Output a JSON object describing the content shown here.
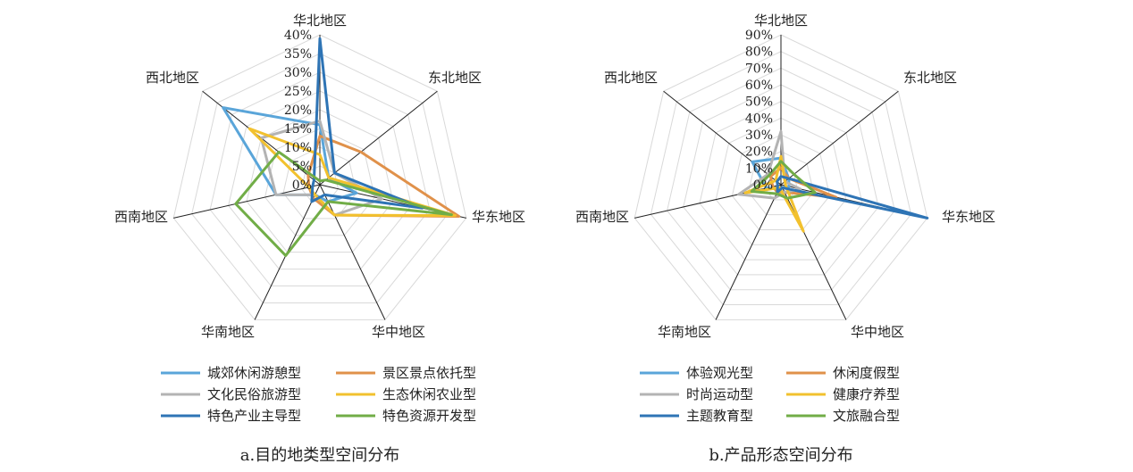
{
  "chart_data": [
    {
      "type": "radar",
      "title": "a.目的地类型空间分布",
      "axes": [
        "华北地区",
        "东北地区",
        "华东地区",
        "华中地区",
        "华南地区",
        "西南地区",
        "西北地区"
      ],
      "tick_labels": [
        "0%",
        "5%",
        "10%",
        "15%",
        "20%",
        "25%",
        "30%",
        "35%",
        "40%"
      ],
      "range": [
        0,
        40
      ],
      "unit": "%",
      "grid": true,
      "legend_position": "bottom",
      "series": [
        {
          "name": "城郊休闲游憩型",
          "color": "#5AA5D9",
          "values": [
            16,
            3,
            10,
            5,
            3,
            12,
            33
          ]
        },
        {
          "name": "景区景点依托型",
          "color": "#E0914A",
          "values": [
            13,
            14,
            38,
            9,
            4,
            3,
            4
          ]
        },
        {
          "name": "文化民俗旅游型",
          "color": "#B3B3B3",
          "values": [
            17,
            5,
            17,
            9,
            3,
            12,
            20
          ]
        },
        {
          "name": "生态休闲农业型",
          "color": "#F2C12E",
          "values": [
            8,
            3,
            37,
            9,
            3,
            3,
            24
          ]
        },
        {
          "name": "特色产业主导型",
          "color": "#2E74B5",
          "values": [
            39,
            5,
            28,
            3,
            5,
            2,
            2
          ]
        },
        {
          "name": "特色资源开发型",
          "color": "#71AD47",
          "values": [
            1,
            2,
            36,
            5,
            21,
            23,
            14
          ]
        }
      ]
    },
    {
      "type": "radar",
      "title": "b.产品形态空间分布",
      "axes": [
        "华北地区",
        "东北地区",
        "华东地区",
        "华中地区",
        "华南地区",
        "西南地区",
        "西北地区"
      ],
      "tick_labels": [
        "0%",
        "10%",
        "20%",
        "30%",
        "40%",
        "50%",
        "60%",
        "70%",
        "80%",
        "90%"
      ],
      "range": [
        0,
        90
      ],
      "unit": "%",
      "grid": true,
      "legend_position": "bottom",
      "series": [
        {
          "name": "体验观光型",
          "color": "#5AA5D9",
          "values": [
            16,
            6,
            5,
            2,
            2,
            9,
            22
          ]
        },
        {
          "name": "休闲度假型",
          "color": "#E0914A",
          "values": [
            10,
            6,
            34,
            5,
            5,
            5,
            8
          ]
        },
        {
          "name": "时尚运动型",
          "color": "#B3B3B3",
          "values": [
            32,
            3,
            12,
            5,
            9,
            26,
            10
          ]
        },
        {
          "name": "健康疗养型",
          "color": "#F2C12E",
          "values": [
            17,
            3,
            3,
            31,
            2,
            22,
            4
          ]
        },
        {
          "name": "主题教育型",
          "color": "#2E74B5",
          "values": [
            5,
            6,
            90,
            2,
            5,
            2,
            3
          ]
        },
        {
          "name": "文旅融合型",
          "color": "#71AD47",
          "values": [
            14,
            10,
            21,
            9,
            6,
            18,
            9
          ]
        }
      ]
    }
  ]
}
